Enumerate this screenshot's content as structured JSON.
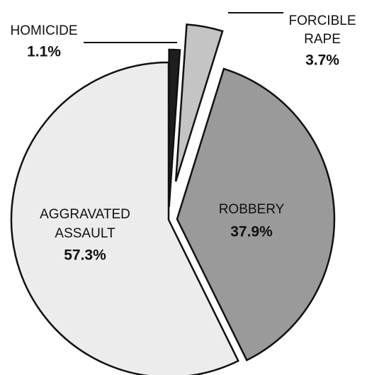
{
  "chart_data": {
    "type": "pie",
    "categories": [
      "HOMICIDE",
      "FORCIBLE RAPE",
      "ROBBERY",
      "AGGRAVATED ASSAULT"
    ],
    "values": [
      1.1,
      3.7,
      37.9,
      57.3
    ],
    "value_labels": [
      "1.1%",
      "3.7%",
      "37.9%",
      "57.3%"
    ],
    "colors": [
      "#1e1e1e",
      "#c4c4c4",
      "#9a9a9a",
      "#ececec"
    ]
  }
}
